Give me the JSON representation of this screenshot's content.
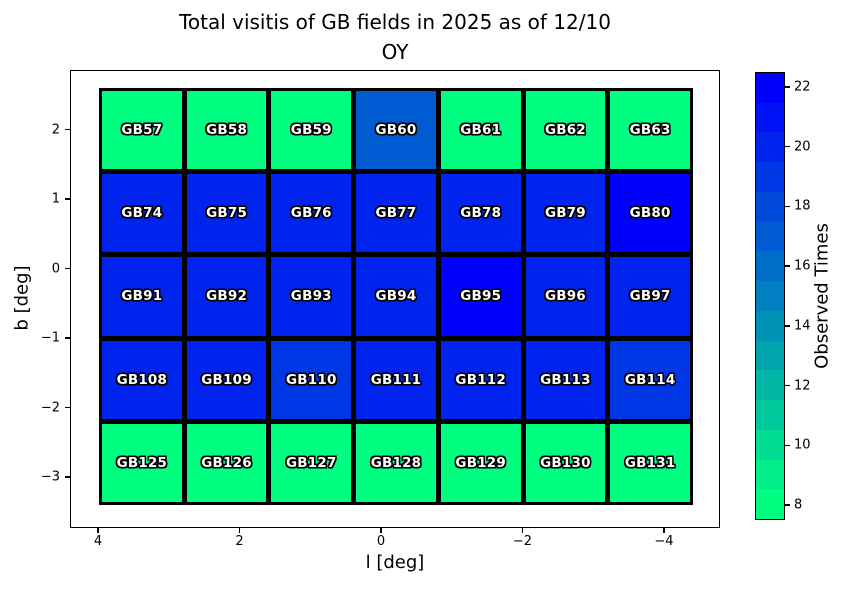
{
  "title": {
    "line1": "Total visitis of GB fields in 2025 as of 12/10",
    "line2": "OY"
  },
  "axes": {
    "xlabel": "l [deg]",
    "ylabel": "b [deg]"
  },
  "colorbar": {
    "label": "Observed Times",
    "tick_values": [
      22,
      20,
      18,
      16,
      14,
      12,
      10,
      8
    ],
    "tick_labels": [
      "22",
      "20",
      "18",
      "16",
      "14",
      "12",
      "10",
      "8"
    ],
    "vmin": 7.5,
    "vmax": 22.5,
    "levels": 15,
    "cmap": "winter_r",
    "color_low": "#00ff80",
    "color_high": "#0000ff"
  },
  "chart_data": {
    "type": "heatmap",
    "title": "Total visitis of GB fields in 2025 as of 12/10 OY",
    "xlabel": "l [deg]",
    "ylabel": "b [deg]",
    "colorbar_label": "Observed Times",
    "cmap": "winter_r",
    "vmin": 7.5,
    "vmax": 22.5,
    "levels": 15,
    "x_tick_values": [
      4,
      2,
      0,
      -2,
      -4
    ],
    "x_tick_labels": [
      "4",
      "2",
      "0",
      "−2",
      "−4"
    ],
    "y_tick_values": [
      2,
      1,
      0,
      -1,
      -2,
      -3
    ],
    "y_tick_labels": [
      "2",
      "1",
      "0",
      "−1",
      "−2",
      "−3"
    ],
    "grid_extent": {
      "l_left": 4.0,
      "l_right": -4.4,
      "b_top": 2.6,
      "b_bottom": -3.4
    },
    "columns": 7,
    "rows": [
      {
        "b_center": 2.0,
        "fields": [
          {
            "name": "GB57",
            "value": 8
          },
          {
            "name": "GB58",
            "value": 8
          },
          {
            "name": "GB59",
            "value": 8
          },
          {
            "name": "GB60",
            "value": 17
          },
          {
            "name": "GB61",
            "value": 8
          },
          {
            "name": "GB62",
            "value": 8
          },
          {
            "name": "GB63",
            "value": 8
          }
        ]
      },
      {
        "b_center": 0.8,
        "fields": [
          {
            "name": "GB74",
            "value": 20
          },
          {
            "name": "GB75",
            "value": 20
          },
          {
            "name": "GB76",
            "value": 20
          },
          {
            "name": "GB77",
            "value": 20
          },
          {
            "name": "GB78",
            "value": 20
          },
          {
            "name": "GB79",
            "value": 20
          },
          {
            "name": "GB80",
            "value": 22
          }
        ]
      },
      {
        "b_center": -0.4,
        "fields": [
          {
            "name": "GB91",
            "value": 20
          },
          {
            "name": "GB92",
            "value": 20
          },
          {
            "name": "GB93",
            "value": 20
          },
          {
            "name": "GB94",
            "value": 20
          },
          {
            "name": "GB95",
            "value": 22
          },
          {
            "name": "GB96",
            "value": 20
          },
          {
            "name": "GB97",
            "value": 20
          }
        ]
      },
      {
        "b_center": -1.6,
        "fields": [
          {
            "name": "GB108",
            "value": 20
          },
          {
            "name": "GB109",
            "value": 20
          },
          {
            "name": "GB110",
            "value": 19
          },
          {
            "name": "GB111",
            "value": 20
          },
          {
            "name": "GB112",
            "value": 20
          },
          {
            "name": "GB113",
            "value": 20
          },
          {
            "name": "GB114",
            "value": 19
          }
        ]
      },
      {
        "b_center": -2.8,
        "fields": [
          {
            "name": "GB125",
            "value": 8
          },
          {
            "name": "GB126",
            "value": 8
          },
          {
            "name": "GB127",
            "value": 8
          },
          {
            "name": "GB128",
            "value": 8
          },
          {
            "name": "GB129",
            "value": 8
          },
          {
            "name": "GB130",
            "value": 8
          },
          {
            "name": "GB131",
            "value": 8
          }
        ]
      }
    ]
  }
}
